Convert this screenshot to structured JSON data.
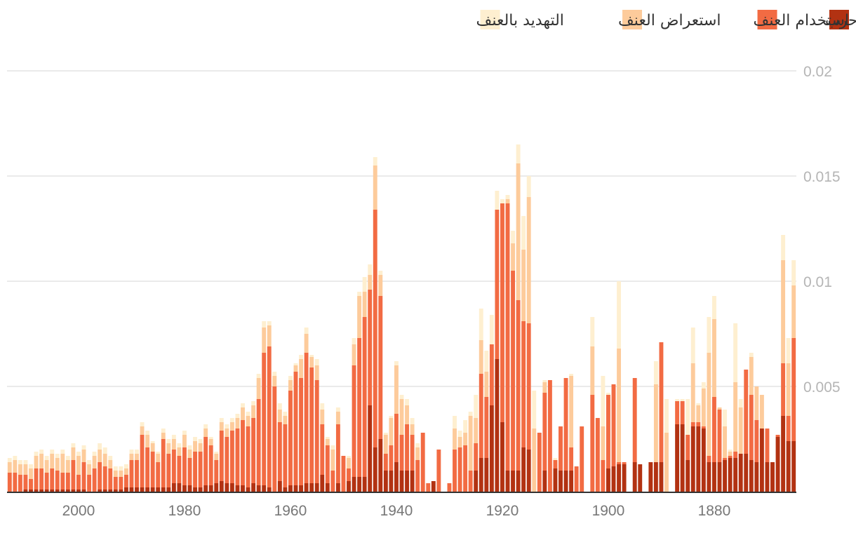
{
  "chart_data": {
    "type": "bar",
    "stacked": true,
    "x_axis_direction": "right-to-left",
    "x_range": [
      1865,
      2014
    ],
    "ylim": [
      0,
      0.02
    ],
    "y_ticks": [
      "0.005",
      "0.01",
      "0.015",
      "0.02"
    ],
    "y_tick_values": [
      0.005,
      0.01,
      0.015,
      0.02
    ],
    "x_ticks": [
      "1880",
      "1900",
      "1920",
      "1940",
      "1960",
      "1980",
      "2000"
    ],
    "x_tick_values": [
      1880,
      1900,
      1920,
      1940,
      1960,
      1980,
      2000
    ],
    "grid": true,
    "legend_position": "top-right",
    "legend": [
      {
        "name": "حرب",
        "color": "#b23212"
      },
      {
        "name": "استخدام العنف",
        "color": "#f26b43"
      },
      {
        "name": "استعراض العنف",
        "color": "#fdcb9b"
      },
      {
        "name": "التهديد بالعنف",
        "color": "#feefd0"
      }
    ],
    "x": [
      1865,
      1866,
      1867,
      1868,
      1869,
      1870,
      1871,
      1872,
      1873,
      1874,
      1875,
      1876,
      1877,
      1878,
      1879,
      1880,
      1881,
      1882,
      1883,
      1884,
      1885,
      1886,
      1887,
      1888,
      1889,
      1890,
      1891,
      1892,
      1893,
      1894,
      1895,
      1896,
      1897,
      1898,
      1899,
      1900,
      1901,
      1902,
      1903,
      1904,
      1905,
      1906,
      1907,
      1908,
      1909,
      1910,
      1911,
      1912,
      1913,
      1914,
      1915,
      1916,
      1917,
      1918,
      1919,
      1920,
      1921,
      1922,
      1923,
      1924,
      1925,
      1926,
      1927,
      1928,
      1929,
      1930,
      1931,
      1932,
      1933,
      1934,
      1935,
      1936,
      1937,
      1938,
      1939,
      1940,
      1941,
      1942,
      1943,
      1944,
      1945,
      1946,
      1947,
      1948,
      1949,
      1950,
      1951,
      1952,
      1953,
      1954,
      1955,
      1956,
      1957,
      1958,
      1959,
      1960,
      1961,
      1962,
      1963,
      1964,
      1965,
      1966,
      1967,
      1968,
      1969,
      1970,
      1971,
      1972,
      1973,
      1974,
      1975,
      1976,
      1977,
      1978,
      1979,
      1980,
      1981,
      1982,
      1983,
      1984,
      1985,
      1986,
      1987,
      1988,
      1989,
      1990,
      1991,
      1992,
      1993,
      1994,
      1995,
      1996,
      1997,
      1998,
      1999,
      2000,
      2001,
      2002,
      2003,
      2004,
      2005,
      2006,
      2007,
      2008,
      2009,
      2010,
      2011,
      2012,
      2013,
      2014
    ],
    "series": [
      {
        "name": "حرب",
        "values": [
          0.0024,
          0.0024,
          0.0036,
          0.0026,
          0.0014,
          0.0014,
          0.003,
          0.0014,
          0.0015,
          0.0018,
          0.0018,
          0.0016,
          0.0016,
          0.0015,
          0.0014,
          0.0014,
          0.0014,
          0.003,
          0.0031,
          0.0031,
          0.0015,
          0.0032,
          0.0032,
          0,
          0,
          0.0014,
          0.0014,
          0.0014,
          0,
          0.0013,
          0.0014,
          0,
          0.0013,
          0.0013,
          0.0012,
          0.0011,
          0,
          0,
          0,
          0,
          0,
          0,
          0.001,
          0.001,
          0.001,
          0.0011,
          0,
          0.001,
          0,
          0,
          0.002,
          0.0021,
          0.001,
          0.001,
          0.001,
          0.0033,
          0.0063,
          0.0041,
          0.0016,
          0.0016,
          0.001,
          0,
          0,
          0,
          0,
          0,
          0,
          0,
          0.0005,
          0,
          0,
          0,
          0.001,
          0.001,
          0.001,
          0.0014,
          0.001,
          0.001,
          0.0025,
          0.0021,
          0.0041,
          0.0007,
          0.0007,
          0.0007,
          0.0005,
          0,
          0.0004,
          0,
          0.0004,
          0.0008,
          0.0004,
          0.0004,
          0.0004,
          0.0003,
          0.0003,
          0.0003,
          0.0002,
          0.0005,
          0,
          0.0002,
          0.0003,
          0.0003,
          0.0004,
          0.0002,
          0.0003,
          0.0003,
          0.0004,
          0.0004,
          0.0005,
          0.0004,
          0.0003,
          0.0003,
          0.0002,
          0.0002,
          0.0003,
          0.0003,
          0.0004,
          0.0004,
          0.0002,
          0.0002,
          0.0002,
          0.0002,
          0.0002,
          0.0002,
          0.0002,
          0.0002,
          0.0002,
          0.0001,
          0.0001,
          0.0001,
          0.0001,
          0.0001,
          0,
          0,
          0.0001,
          0.0001,
          0.0001,
          0.0001,
          0.0001,
          0.0001,
          0.0001,
          0.0001,
          0.0001,
          0.0001,
          0.0001,
          0.0001,
          0,
          0,
          0,
          0
        ],
        "display_max": 0.0175
      },
      {
        "name": "استخدام العنف",
        "values": [
          0.0049,
          0.0012,
          0.0025,
          0.0001,
          0,
          0.0016,
          0,
          0.002,
          0.0031,
          0.004,
          0,
          0.0003,
          0.0001,
          0.0001,
          0.0025,
          0.0031,
          0.0003,
          0.0001,
          0.0002,
          0.0002,
          0.0012,
          0.0011,
          0.0011,
          0,
          0,
          0.0057,
          0,
          0,
          0,
          0,
          0.004,
          0,
          0.0001,
          0.0001,
          0.0039,
          0.0035,
          0.0015,
          0.0035,
          0.0046,
          0,
          0.0031,
          0.0012,
          0.0011,
          0.0044,
          0.0021,
          0.0004,
          0.0053,
          0.0037,
          0.0028,
          0,
          0.006,
          0.006,
          0.0081,
          0.0095,
          0.0127,
          0.0104,
          0.0071,
          0.0029,
          0.0029,
          0.004,
          0.0013,
          0.001,
          0.0022,
          0.0021,
          0.002,
          0.0004,
          0,
          0.002,
          0,
          0.0004,
          0.0028,
          0.0015,
          0.0017,
          0.0022,
          0.0017,
          0.0023,
          0.0012,
          0.0008,
          0.0068,
          0.0113,
          0.0055,
          0.0076,
          0.0066,
          0.0053,
          0.0006,
          0.0017,
          0.0028,
          0.001,
          0.0018,
          0.0024,
          0.0049,
          0.0055,
          0.0062,
          0.0051,
          0.0054,
          0.0045,
          0.003,
          0.0028,
          0.005,
          0.0067,
          0.0063,
          0.0041,
          0.0031,
          0.0029,
          0.0031,
          0.0027,
          0.0025,
          0.0022,
          0.0024,
          0.0011,
          0.0019,
          0.0023,
          0.0017,
          0.0017,
          0.0013,
          0.0018,
          0.0013,
          0.0016,
          0.0016,
          0.0023,
          0.0012,
          0.0017,
          0.0019,
          0.0025,
          0.0013,
          0.0013,
          0.0006,
          0.0006,
          0.0006,
          0.001,
          0.0011,
          0.0013,
          0.0011,
          0.0008,
          0.0013,
          0.0007,
          0.0014,
          0.0008,
          0.0008,
          0.0009,
          0.001,
          0.0008,
          0.001,
          0.001,
          0.0005,
          0.0007,
          0.0008,
          0.0009,
          0.0009,
          0.0011
        ],
        "display_max": 0.0175
      },
      {
        "name": "استعراض العنف",
        "values": [
          0.0025,
          0.0025,
          0.0049,
          0,
          0,
          0,
          0.0016,
          0.0016,
          0.0018,
          0,
          0.0022,
          0.0033,
          0.0002,
          0.0015,
          0.0001,
          0.0037,
          0.0049,
          0.0018,
          0.0008,
          0.0028,
          0,
          0,
          0,
          0,
          0.0028,
          0,
          0.0037,
          0,
          0,
          0,
          0,
          0,
          0,
          0.0054,
          0,
          0,
          0.0016,
          0,
          0.0023,
          0,
          0,
          0,
          0.0034,
          0,
          0,
          0,
          0,
          0.0005,
          0,
          0.003,
          0.006,
          0.0034,
          0.0065,
          0.0013,
          0.0002,
          0,
          0,
          0,
          0.0012,
          0.0016,
          0.0012,
          0.0026,
          0.0006,
          0.0005,
          0.001,
          0,
          0,
          0,
          0,
          0,
          0,
          0.0006,
          0.0005,
          0.0009,
          0.0017,
          0.0023,
          0.0013,
          0.0009,
          0.001,
          0.0021,
          0.0007,
          0.0012,
          0.002,
          0.001,
          0.0005,
          0,
          0.0006,
          0.001,
          0.0003,
          0.0007,
          0.0007,
          0.0005,
          0.0009,
          0.0009,
          0.0003,
          0.0005,
          0.0004,
          0.0006,
          0.0005,
          0.001,
          0.0012,
          0.001,
          0.0006,
          0.0005,
          0.0006,
          0.0005,
          0.0004,
          0.0004,
          0.0004,
          0.0003,
          0.0003,
          0.0004,
          0.0004,
          0.0005,
          0.0004,
          0.0006,
          0.0004,
          0.0005,
          0.0005,
          0.0003,
          0.0004,
          0.0004,
          0.0006,
          0.0004,
          0.0003,
          0.0003,
          0.0003,
          0.0003,
          0.0003,
          0.0004,
          0.0006,
          0.0006,
          0.0006,
          0.0005,
          0.0006,
          0.0009,
          0.0006,
          0.0006,
          0.0009,
          0.0006,
          0.0007,
          0.0006,
          0.0007,
          0.0006,
          0.0005,
          0.0005,
          0.0005,
          0.0006,
          0.0005,
          0.0005
        ],
        "display_max": 0.0175
      },
      {
        "name": "التهديد بالعنف",
        "values": [
          0.0012,
          0.0012,
          0.0012,
          0,
          0,
          0,
          0,
          0,
          0.0002,
          0,
          0.0004,
          0.0028,
          0.0001,
          0.0008,
          0,
          0.0011,
          0.0017,
          0.0003,
          0.0001,
          0.0017,
          0.0017,
          0.0001,
          0.0001,
          0,
          0.0016,
          0,
          0.0011,
          0,
          0,
          0,
          0,
          0,
          0,
          0.0032,
          0,
          0.0001,
          0.0024,
          0,
          0.0014,
          0,
          0,
          0,
          0.0001,
          0,
          0,
          0.0001,
          0,
          0.0001,
          0,
          0.0018,
          0.001,
          0.0016,
          0.0009,
          0.0006,
          0.0002,
          0.0002,
          0.0009,
          0.0014,
          0.001,
          0.0015,
          0.0011,
          0.0002,
          0.0006,
          0.0003,
          0.0006,
          0,
          0,
          0,
          0,
          0,
          0,
          0.0002,
          0.0003,
          0.0003,
          0.0002,
          0.0002,
          0.0001,
          0.0001,
          0.0002,
          0.0004,
          0.0005,
          0.0007,
          0.0002,
          0.0003,
          0.0001,
          0,
          0.0002,
          0.0002,
          0.0001,
          0.0003,
          0.0003,
          0.0001,
          0.0003,
          0.0002,
          0.0001,
          0.0002,
          0.0002,
          0.0003,
          0.0002,
          0.0002,
          0.0003,
          0.0002,
          0.0002,
          0.0002,
          0.0002,
          0.0002,
          0.0002,
          0.0002,
          0.0002,
          0.0001,
          0.0001,
          0.0002,
          0.0002,
          0.0002,
          0.0002,
          0.0002,
          0.0002,
          0.0002,
          0.0002,
          0.0002,
          0.0001,
          0.0001,
          0.0002,
          0.0002,
          0.0002,
          0.0002,
          0.0002,
          0.0002,
          0.0002,
          0.0002,
          0.0003,
          0.0003,
          0.0002,
          0.0002,
          0.0002,
          0.0002,
          0.0002,
          0.0002,
          0.0002,
          0.0002,
          0.0002,
          0.0002,
          0.0002,
          0.0002,
          0.0002,
          0.0002,
          0.0002,
          0.0002,
          0.0002,
          0.0002
        ],
        "display_max": 0.0175
      }
    ]
  }
}
